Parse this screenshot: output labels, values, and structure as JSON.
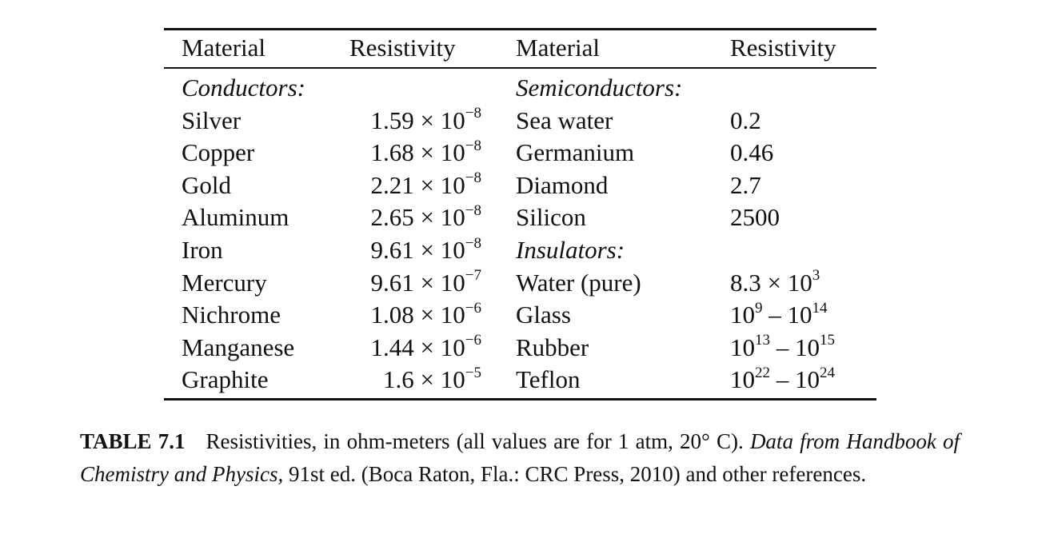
{
  "table": {
    "headers": {
      "material_1": "Material",
      "resistivity_1": "Resistivity",
      "material_2": "Material",
      "resistivity_2": "Resistivity"
    },
    "left_group_heading": "Conductors:",
    "left_rows": [
      {
        "material": "Silver",
        "mantissa": "1.59 × 10",
        "exponent": "−8"
      },
      {
        "material": "Copper",
        "mantissa": "1.68 × 10",
        "exponent": "−8"
      },
      {
        "material": "Gold",
        "mantissa": "2.21 × 10",
        "exponent": "−8"
      },
      {
        "material": "Aluminum",
        "mantissa": "2.65 × 10",
        "exponent": "−8"
      },
      {
        "material": "Iron",
        "mantissa": "9.61 × 10",
        "exponent": "−8"
      },
      {
        "material": "Mercury",
        "mantissa": "9.61 × 10",
        "exponent": "−7"
      },
      {
        "material": "Nichrome",
        "mantissa": "1.08 × 10",
        "exponent": "−6"
      },
      {
        "material": "Manganese",
        "mantissa": "1.44 × 10",
        "exponent": "−6"
      },
      {
        "material": "Graphite",
        "mantissa": "1.6 × 10",
        "exponent": "−5"
      }
    ],
    "right_rows": [
      {
        "heading": "Semiconductors:"
      },
      {
        "material": "Sea water",
        "value": "0.2"
      },
      {
        "material": "Germanium",
        "value": "0.46"
      },
      {
        "material": "Diamond",
        "value": "2.7"
      },
      {
        "material": "Silicon",
        "value": "2500"
      },
      {
        "heading": "Insulators:"
      },
      {
        "material": "Water (pure)",
        "base_a": "8.3 × 10",
        "exp_a": "3"
      },
      {
        "material": "Glass",
        "base_a": "10",
        "exp_a": "9",
        "dash": " – ",
        "base_b": "10",
        "exp_b": "14"
      },
      {
        "material": "Rubber",
        "base_a": "10",
        "exp_a": "13",
        "dash": " – ",
        "base_b": "10",
        "exp_b": "15"
      },
      {
        "material": "Teflon",
        "base_a": "10",
        "exp_a": "22",
        "dash": " – ",
        "base_b": "10",
        "exp_b": "24"
      }
    ]
  },
  "caption": {
    "label": "TABLE 7.1",
    "text": "Resistivities, in ohm-meters (all values are for 1 atm, 20° C).",
    "italic_source": "Data from Handbook of Chemistry and Physics,",
    "edition_text": "91st ed. (Boca Raton, Fla.: CRC Press, 2010) and other references."
  }
}
